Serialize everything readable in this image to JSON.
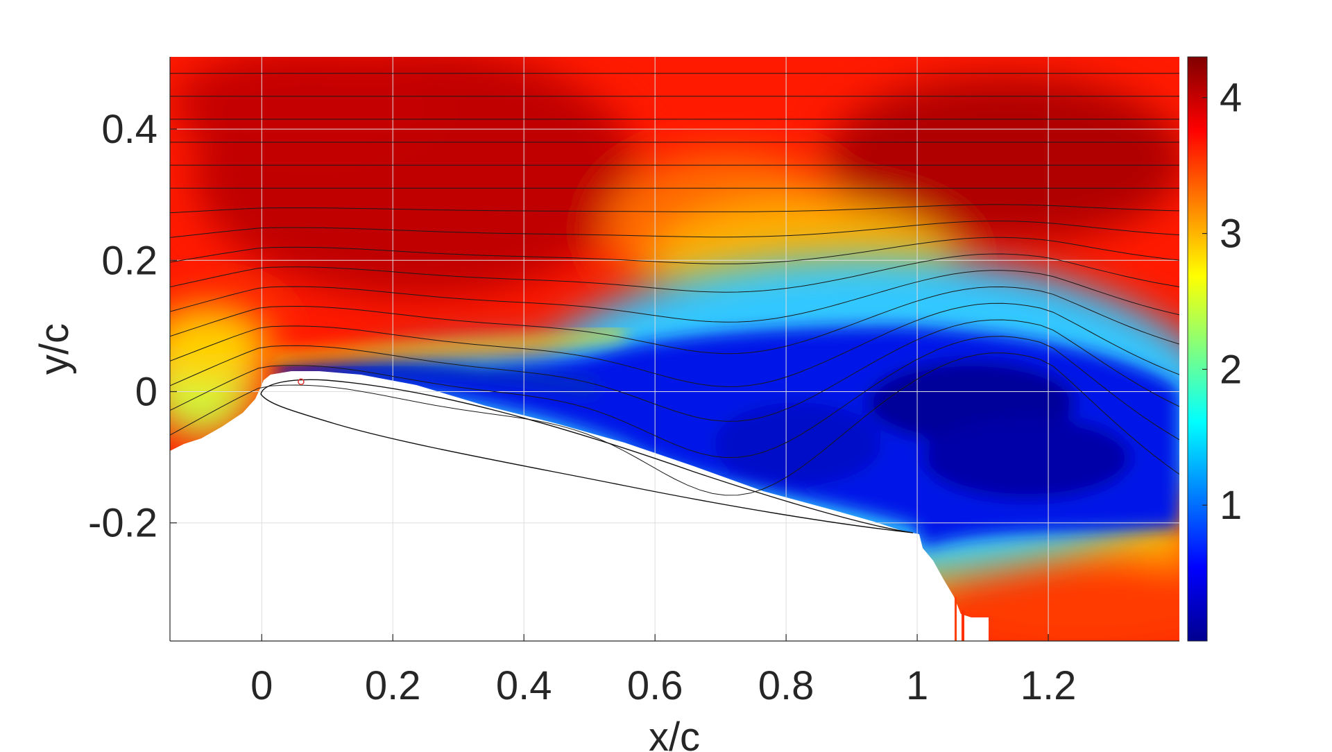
{
  "chart_data": {
    "type": "heatmap",
    "title": "",
    "xlabel": "x/c",
    "ylabel": "y/c",
    "xlim": [
      -0.14,
      1.4
    ],
    "ylim": [
      -0.38,
      0.51
    ],
    "x_ticks": [
      0,
      0.2,
      0.4,
      0.6,
      0.8,
      1,
      1.2
    ],
    "x_tick_labels": [
      "0",
      "0.2",
      "0.4",
      "0.6",
      "0.8",
      "1",
      "1.2"
    ],
    "y_ticks": [
      -0.2,
      0,
      0.2,
      0.4
    ],
    "y_tick_labels": [
      "-0.2",
      "0",
      "0.2",
      "0.4"
    ],
    "grid": true,
    "colormap": "jet",
    "colorbar": {
      "range": [
        0,
        4.3
      ],
      "ticks": [
        1,
        2,
        3,
        4
      ],
      "tick_labels": [
        "1",
        "2",
        "3",
        "4"
      ],
      "placement": "right"
    },
    "airfoil": {
      "leading_edge": [
        0,
        0
      ],
      "trailing_edge": [
        1,
        -0.21
      ],
      "upper_max_y": 0.015,
      "lower_min_y": -0.035
    },
    "streamline_count": 17,
    "marker": {
      "x": 0.06,
      "y": 0.015,
      "color": "#e03030"
    }
  }
}
